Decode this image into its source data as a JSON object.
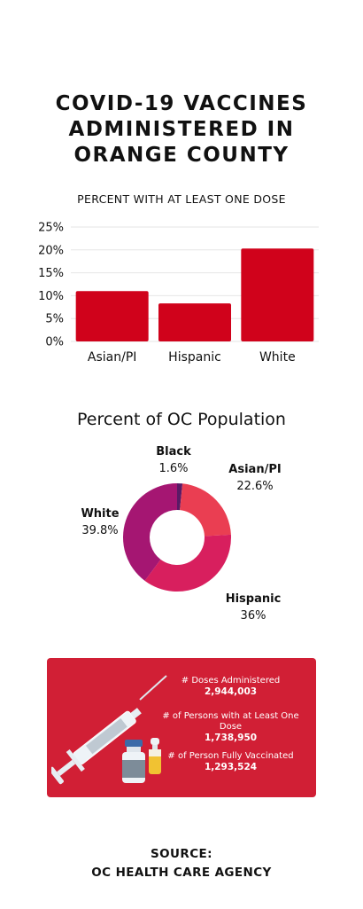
{
  "title_lines": [
    "COVID-19 VACCINES",
    "ADMINISTERED IN",
    "ORANGE COUNTY"
  ],
  "chart_data": [
    {
      "type": "bar",
      "title": "PERCENT WITH AT LEAST ONE DOSE",
      "categories": [
        "Asian/PI",
        "Hispanic",
        "White"
      ],
      "values": [
        11,
        8.3,
        20.3
      ],
      "ylim": [
        0,
        25
      ],
      "yticks": [
        "0%",
        "5%",
        "10%",
        "15%",
        "20%",
        "25%"
      ],
      "grid": true,
      "color": "#d0021b"
    },
    {
      "type": "pie",
      "title": "Percent of OC Population",
      "slices": [
        {
          "name": "Black",
          "value": 1.6,
          "label": "1.6%",
          "color": "#5a1a66"
        },
        {
          "name": "Asian/PI",
          "value": 22.6,
          "label": "22.6%",
          "color": "#ea3e52"
        },
        {
          "name": "Hispanic",
          "value": 36,
          "label": "36%",
          "color": "#d81f5e"
        },
        {
          "name": "White",
          "value": 39.8,
          "label": "39.8%",
          "color": "#a51672"
        }
      ]
    }
  ],
  "stats": [
    {
      "label": "# Doses Administered",
      "value": "2,944,003"
    },
    {
      "label": "# of Persons with at Least One Dose",
      "value": "1,738,950"
    },
    {
      "label": "# of Person Fully Vaccinated",
      "value": "1,293,524"
    }
  ],
  "source_lines": [
    "SOURCE:",
    "OC HEALTH CARE AGENCY"
  ],
  "colors": {
    "panel": "#d11f35",
    "text": "#111111"
  },
  "icons": [
    "syringe-icon",
    "vaccine-vial-icon",
    "ampoule-icon"
  ]
}
